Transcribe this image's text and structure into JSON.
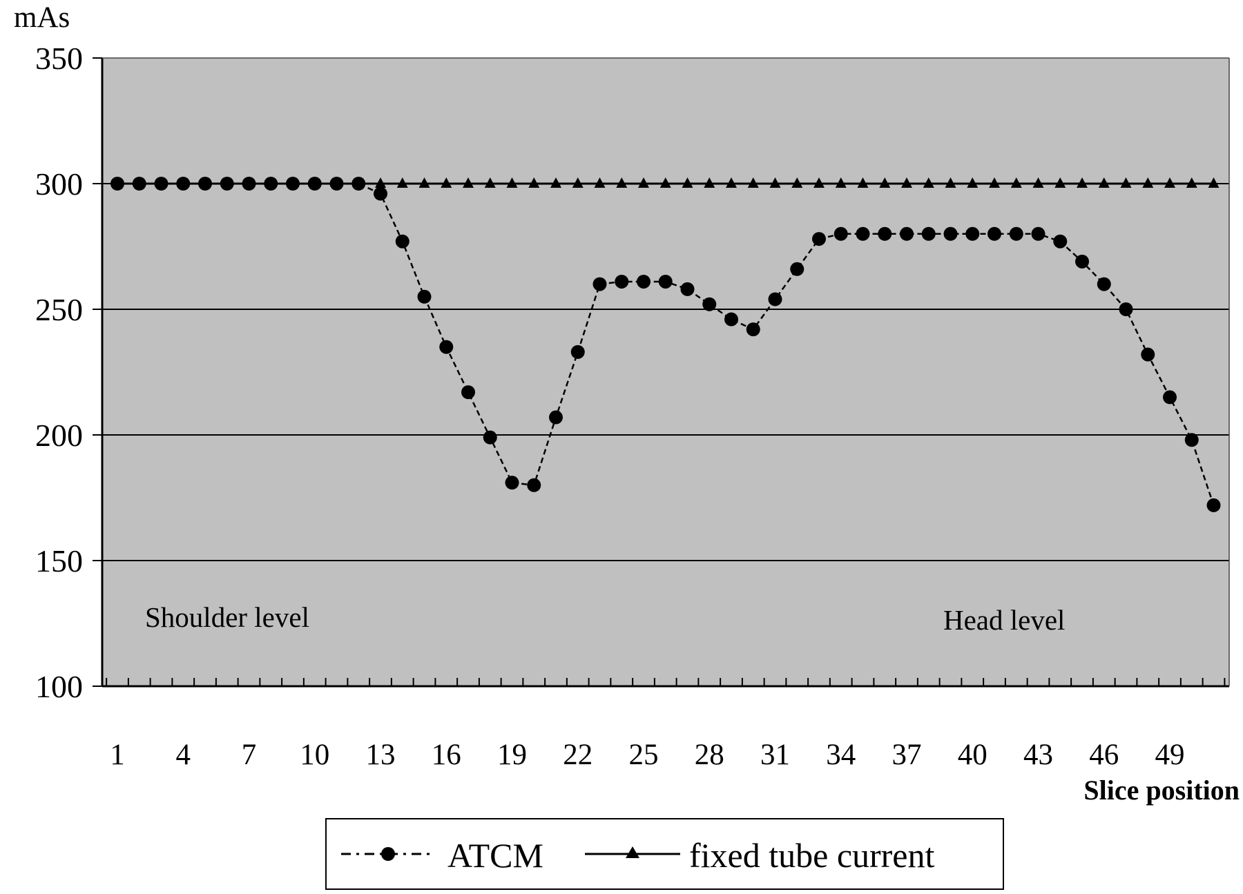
{
  "chart_data": {
    "type": "line",
    "title": "",
    "xlabel": "Slice position",
    "ylabel": "mAs",
    "ylim": [
      100,
      350
    ],
    "yticks": [
      "100",
      "150",
      "200",
      "250",
      "300",
      "350"
    ],
    "xticks": [
      "1",
      "4",
      "7",
      "10",
      "13",
      "16",
      "19",
      "22",
      "25",
      "28",
      "31",
      "34",
      "37",
      "40",
      "43",
      "46",
      "49"
    ],
    "x": [
      1,
      2,
      3,
      4,
      5,
      6,
      7,
      8,
      9,
      10,
      11,
      12,
      13,
      14,
      15,
      16,
      17,
      18,
      19,
      20,
      21,
      22,
      23,
      24,
      25,
      26,
      27,
      28,
      29,
      30,
      31,
      32,
      33,
      34,
      35,
      36,
      37,
      38,
      39,
      40,
      41,
      42,
      43,
      44,
      45,
      46,
      47,
      48,
      49,
      50,
      51
    ],
    "grid": true,
    "legend_position": "bottom",
    "annotations": [
      "Shoulder level",
      "Head level"
    ],
    "series": [
      {
        "name": "ATCM",
        "style": "dashed line with circle markers",
        "values": [
          300,
          300,
          300,
          300,
          300,
          300,
          300,
          300,
          300,
          300,
          300,
          300,
          296,
          277,
          255,
          235,
          217,
          199,
          181,
          180,
          207,
          233,
          260,
          261,
          261,
          261,
          258,
          252,
          246,
          242,
          254,
          266,
          278,
          280,
          280,
          280,
          280,
          280,
          280,
          280,
          280,
          280,
          280,
          277,
          269,
          260,
          250,
          232,
          215,
          198,
          172
        ]
      },
      {
        "name": "fixed tube current",
        "style": "solid line with triangle markers",
        "values": [
          300,
          300,
          300,
          300,
          300,
          300,
          300,
          300,
          300,
          300,
          300,
          300,
          300,
          300,
          300,
          300,
          300,
          300,
          300,
          300,
          300,
          300,
          300,
          300,
          300,
          300,
          300,
          300,
          300,
          300,
          300,
          300,
          300,
          300,
          300,
          300,
          300,
          300,
          300,
          300,
          300,
          300,
          300,
          300,
          300,
          300,
          300,
          300,
          300,
          300,
          300
        ]
      }
    ],
    "colors": {
      "plot_background": "#c0c0c0",
      "line": "#000000",
      "grid": "#000000"
    }
  }
}
